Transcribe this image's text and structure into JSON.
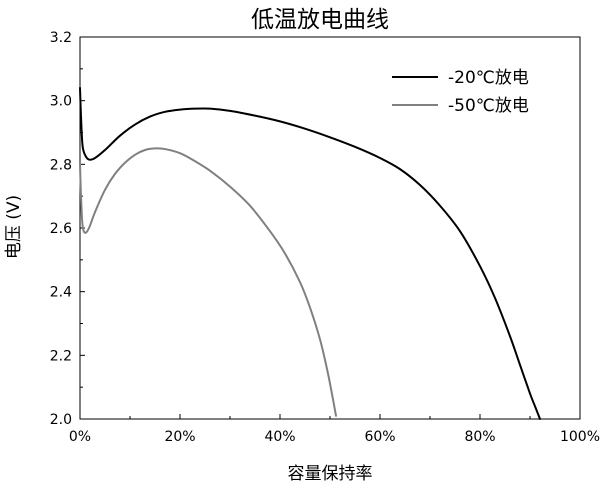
{
  "chart_data": {
    "type": "line",
    "title": "低温放电曲线",
    "xlabel": "容量保持率",
    "ylabel": "电压 (V)",
    "xlim": [
      0,
      100
    ],
    "ylim": [
      2.0,
      3.2
    ],
    "x_ticks": [
      0,
      20,
      40,
      60,
      80,
      100
    ],
    "x_tick_labels": [
      "0%",
      "20%",
      "40%",
      "60%",
      "80%",
      "100%"
    ],
    "y_ticks": [
      2.0,
      2.2,
      2.4,
      2.6,
      2.8,
      3.0,
      3.2
    ],
    "y_tick_labels": [
      "2.0",
      "2.2",
      "2.4",
      "2.6",
      "2.8",
      "3.0",
      "3.2"
    ],
    "grid": false,
    "legend_position": "top-right",
    "series": [
      {
        "name": "-20℃放电",
        "color": "#000000",
        "points": [
          [
            0.0,
            3.04
          ],
          [
            0.2,
            2.95
          ],
          [
            0.5,
            2.86
          ],
          [
            1.0,
            2.83
          ],
          [
            1.8,
            2.815
          ],
          [
            3,
            2.82
          ],
          [
            5,
            2.845
          ],
          [
            8,
            2.89
          ],
          [
            11,
            2.925
          ],
          [
            14,
            2.95
          ],
          [
            17,
            2.965
          ],
          [
            20,
            2.972
          ],
          [
            23,
            2.975
          ],
          [
            26,
            2.975
          ],
          [
            30,
            2.968
          ],
          [
            35,
            2.953
          ],
          [
            40,
            2.935
          ],
          [
            45,
            2.912
          ],
          [
            50,
            2.885
          ],
          [
            55,
            2.855
          ],
          [
            60,
            2.82
          ],
          [
            64,
            2.785
          ],
          [
            68,
            2.735
          ],
          [
            72,
            2.67
          ],
          [
            76,
            2.59
          ],
          [
            80,
            2.48
          ],
          [
            83,
            2.38
          ],
          [
            86,
            2.26
          ],
          [
            88,
            2.17
          ],
          [
            90,
            2.08
          ],
          [
            91,
            2.04
          ],
          [
            92,
            2.0
          ]
        ]
      },
      {
        "name": "-50℃放电",
        "color": "#808080",
        "points": [
          [
            0.0,
            2.8
          ],
          [
            0.2,
            2.7
          ],
          [
            0.5,
            2.61
          ],
          [
            1.0,
            2.585
          ],
          [
            1.8,
            2.6
          ],
          [
            3,
            2.65
          ],
          [
            5,
            2.72
          ],
          [
            7,
            2.77
          ],
          [
            9,
            2.805
          ],
          [
            11,
            2.83
          ],
          [
            13,
            2.845
          ],
          [
            15,
            2.85
          ],
          [
            17,
            2.848
          ],
          [
            20,
            2.835
          ],
          [
            23,
            2.81
          ],
          [
            26,
            2.78
          ],
          [
            30,
            2.73
          ],
          [
            34,
            2.67
          ],
          [
            38,
            2.59
          ],
          [
            41,
            2.52
          ],
          [
            44,
            2.43
          ],
          [
            46,
            2.35
          ],
          [
            48,
            2.25
          ],
          [
            49.5,
            2.15
          ],
          [
            50.5,
            2.07
          ],
          [
            51.2,
            2.01
          ]
        ]
      }
    ]
  }
}
